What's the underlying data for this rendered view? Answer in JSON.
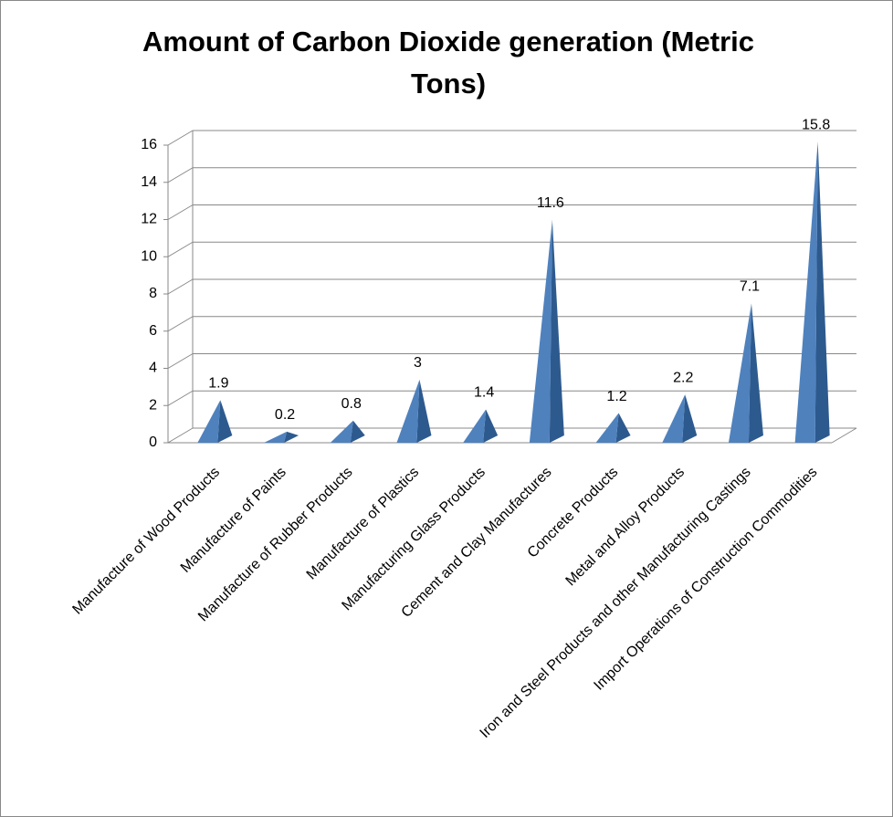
{
  "chart_data": {
    "type": "pyramid",
    "title": "Amount of Carbon Dioxide generation (Metric Tons)",
    "categories": [
      "Manufacture of Wood Products",
      "Manufacture of Paints",
      "Manufacture of Rubber Products",
      "Manufacture of Plastics",
      "Manufacturing Glass Products",
      "Cement and Clay Manufactures",
      "Concrete Products",
      "Metal and Alloy Products",
      "Iron and Steel Products and other Manufacturing Castings",
      "Import Operations of Construction Commodities"
    ],
    "values": [
      1.9,
      0.2,
      0.8,
      3,
      1.4,
      11.6,
      1.2,
      2.2,
      7.1,
      15.8
    ],
    "color": "#4f81bd",
    "ylim": [
      0,
      16
    ],
    "yticks": [
      0,
      2,
      4,
      6,
      8,
      10,
      12,
      14,
      16
    ],
    "grid": true
  }
}
